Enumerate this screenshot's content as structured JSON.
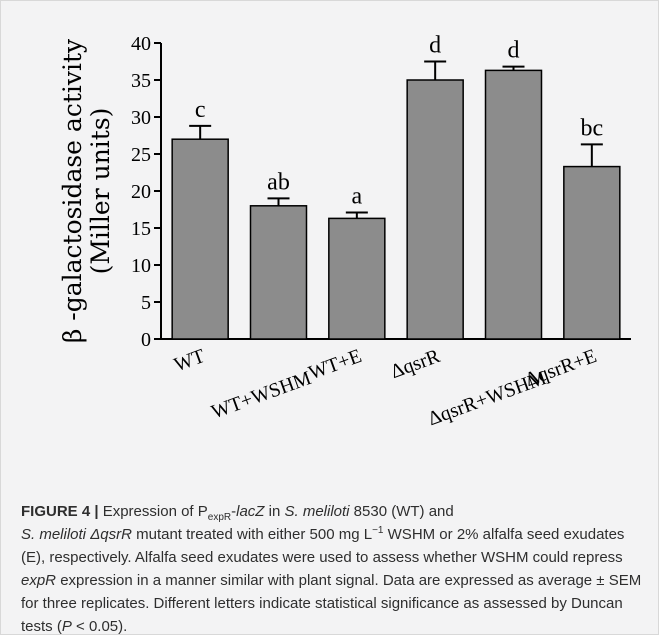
{
  "chart_data": {
    "type": "bar",
    "categories": [
      "WT",
      "WT+WSHM",
      "WT+E",
      "ΔqsrR",
      "ΔqsrR+WSHM",
      "ΔqsrR+E"
    ],
    "values": [
      27.0,
      18.0,
      16.3,
      35.0,
      36.3,
      23.3
    ],
    "errors": [
      1.8,
      1.0,
      0.8,
      2.5,
      0.5,
      3.0
    ],
    "significance": [
      "c",
      "ab",
      "a",
      "d",
      "d",
      "bc"
    ],
    "ylabel_line1": "β -galactosidase activity",
    "ylabel_line2": "(Miller units)",
    "ylim": [
      0,
      40
    ],
    "yticks": [
      0,
      5,
      10,
      15,
      20,
      25,
      30,
      35,
      40
    ],
    "bar_color": "#8c8c8c",
    "grid": false
  },
  "caption": {
    "label": "FIGURE 4 |",
    "p1": " Expression of P",
    "p_sub": "expR",
    "p2": "-",
    "lacz": "lacZ",
    "p3": " in ",
    "sm1": "S. meliloti",
    "p4": " 8530 (WT) and",
    "sm2": "S. meliloti",
    "p5": " ",
    "mutant": "ΔqsrR",
    "p6": " mutant treated with either 500 mg L",
    "exp": "−1",
    "p7": " WSHM or 2% alfalfa seed exudates (E), respectively. Alfalfa seed exudates were used to assess whether WSHM could repress ",
    "expr": "expR",
    "p8": " expression in a manner similar with plant signal. Data are expressed as average ± SEM for three replicates. Different letters indicate statistical significance as assessed by Duncan tests (",
    "pval": "P",
    "p9": " < 0.05)."
  }
}
